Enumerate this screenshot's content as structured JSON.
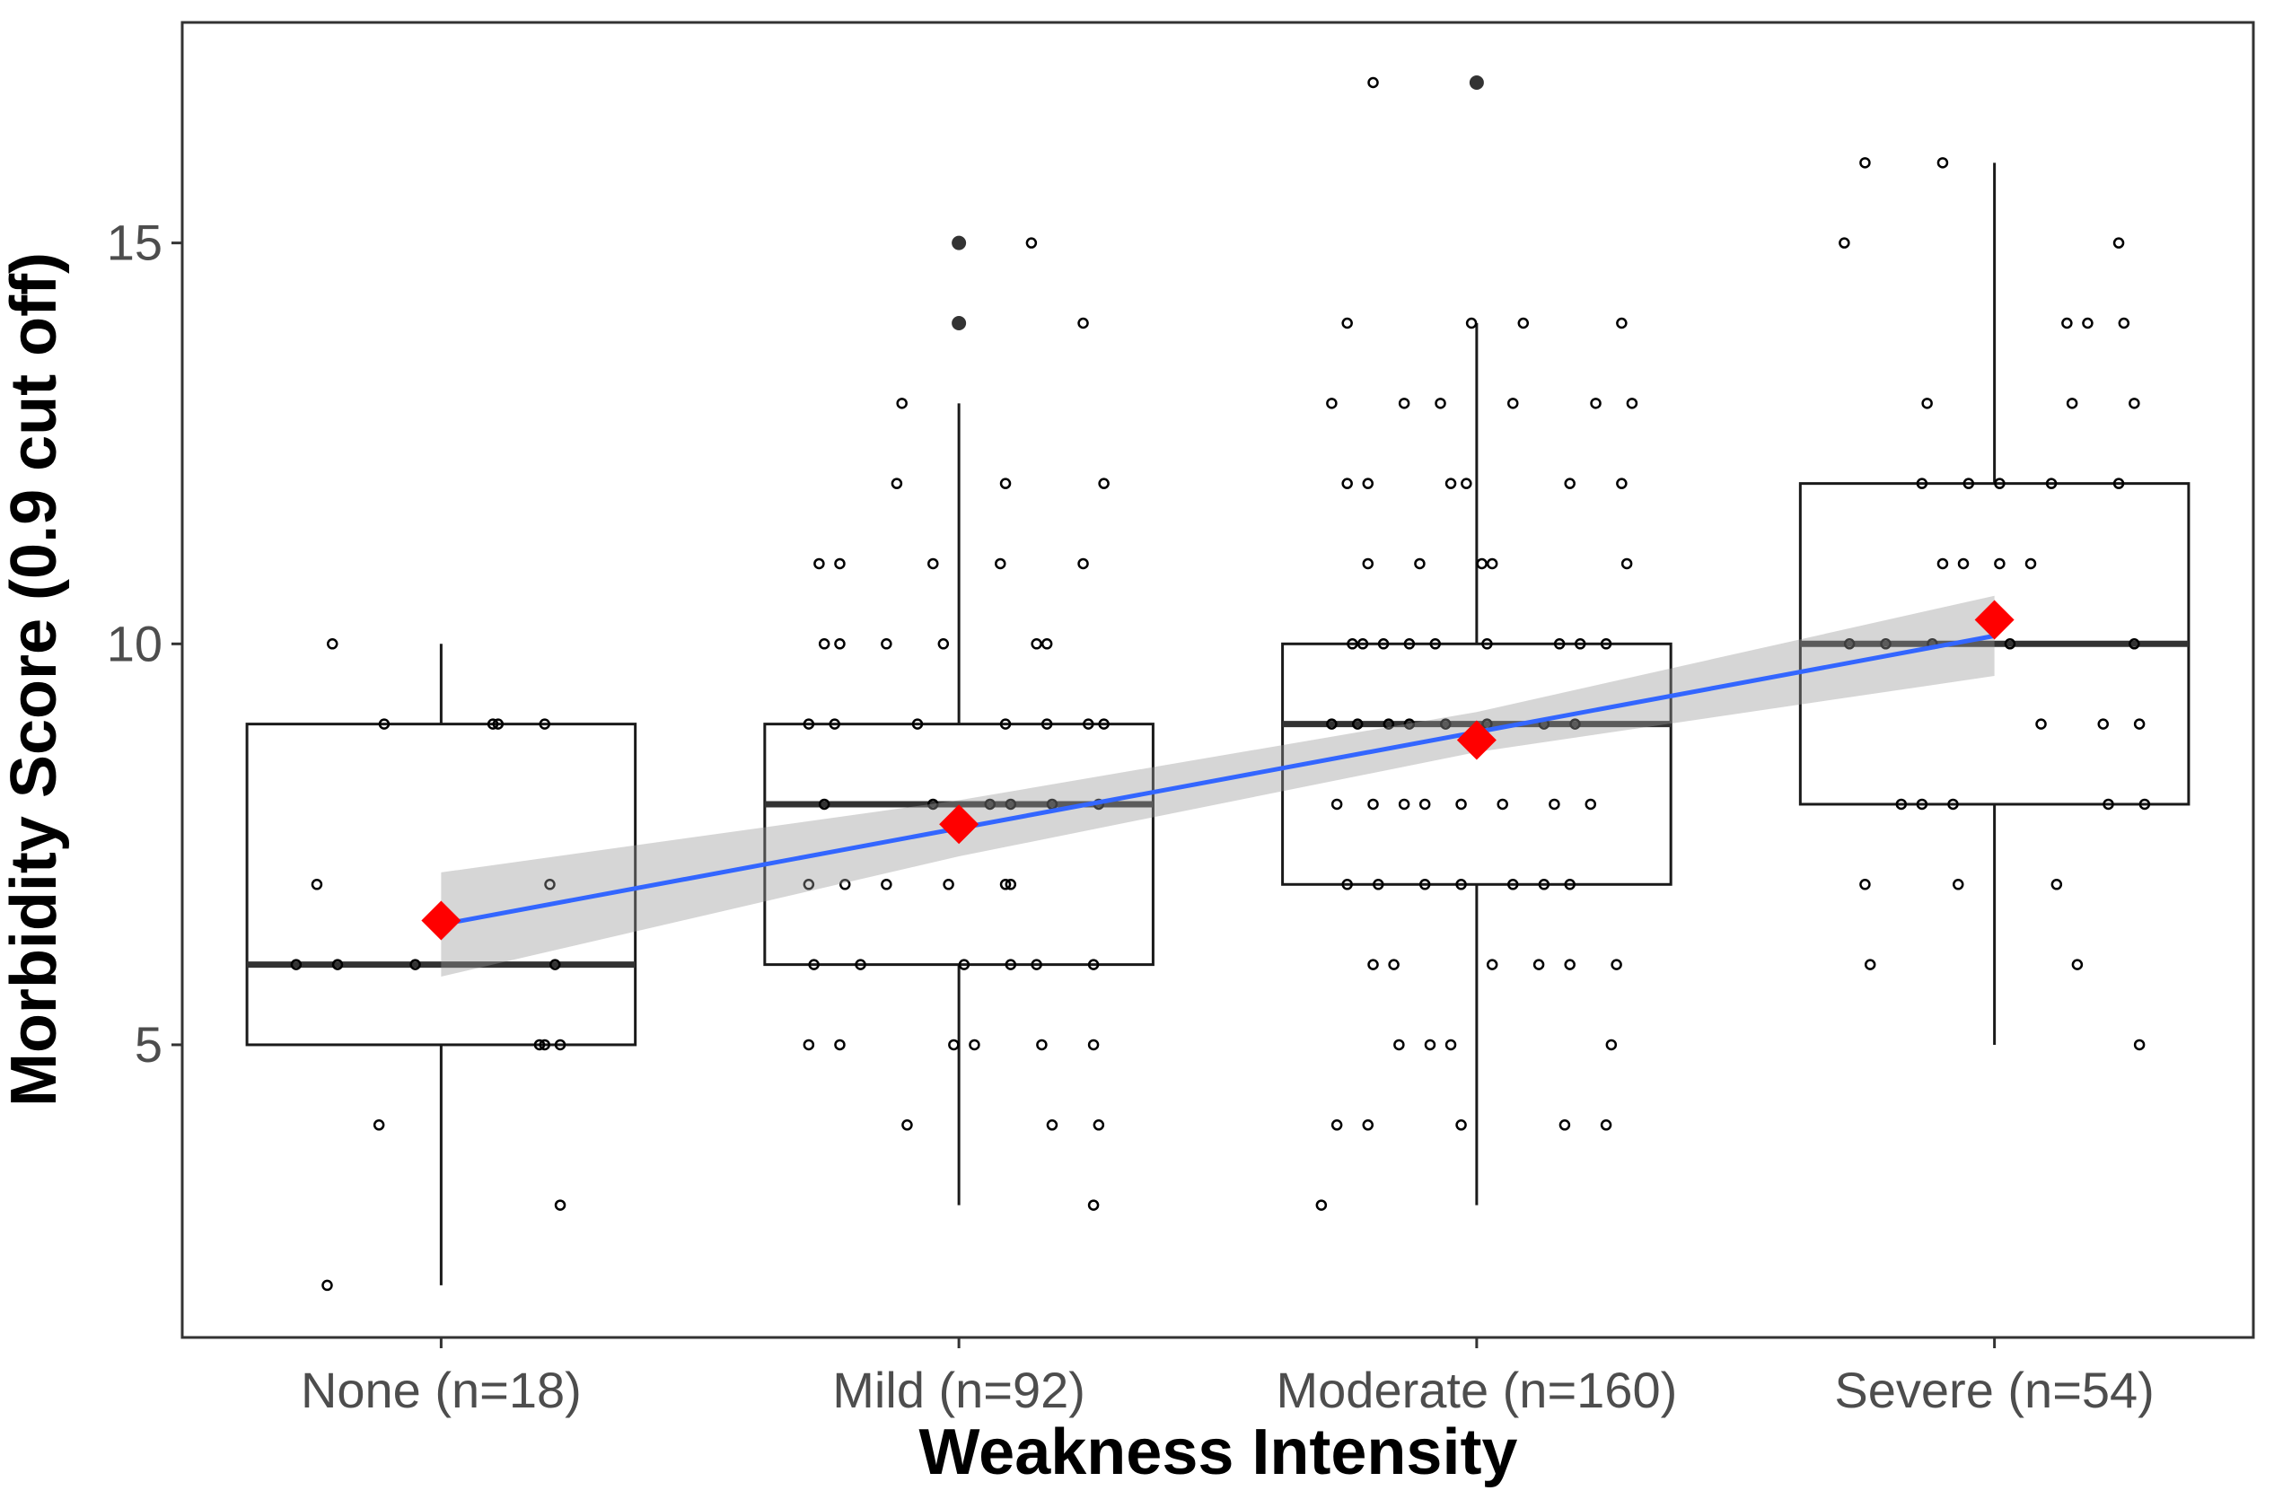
{
  "chart_data": {
    "type": "boxplot",
    "title": "",
    "xlabel": "Weakness Intensity",
    "ylabel": "Morbidity Score (0.9 cut off)",
    "categories": [
      "None (n=18)",
      "Mild (n=92)",
      "Moderate (n=160)",
      "Severe (n=54)"
    ],
    "ylim": [
      1.35,
      17.75
    ],
    "yticks": [
      5,
      10,
      15
    ],
    "grid": false,
    "legend": "none",
    "boxes": [
      {
        "category": "None (n=18)",
        "min": 2,
        "q1": 5,
        "median": 6,
        "q3": 9,
        "max": 10,
        "outliers": []
      },
      {
        "category": "Mild (n=92)",
        "min": 3,
        "q1": 6,
        "median": 8,
        "q3": 9,
        "max": 13,
        "outliers": [
          14,
          15
        ]
      },
      {
        "category": "Moderate (n=160)",
        "min": 3,
        "q1": 7,
        "median": 9,
        "q3": 10,
        "max": 14,
        "outliers": [
          17
        ]
      },
      {
        "category": "Severe (n=54)",
        "min": 5,
        "q1": 8,
        "median": 10,
        "q3": 12,
        "max": 16,
        "outliers": []
      }
    ],
    "means": [
      6.55,
      7.75,
      8.8,
      10.3
    ],
    "trend": {
      "fit": [
        6.5,
        7.7,
        8.9,
        10.1
      ],
      "ci_low": [
        5.85,
        7.35,
        8.65,
        9.6
      ],
      "ci_high": [
        7.15,
        8.05,
        9.15,
        10.6
      ]
    },
    "jitter_points": [
      {
        "group": 0,
        "points": [
          [
            -0.21,
            10
          ],
          [
            -0.11,
            9
          ],
          [
            0.1,
            9
          ],
          [
            0.11,
            9
          ],
          [
            0.2,
            9
          ],
          [
            -0.24,
            7
          ],
          [
            0.21,
            7
          ],
          [
            -0.28,
            6
          ],
          [
            -0.2,
            6
          ],
          [
            -0.05,
            6
          ],
          [
            0.22,
            6
          ],
          [
            0.19,
            5
          ],
          [
            0.2,
            5
          ],
          [
            0.23,
            5
          ],
          [
            -0.12,
            4
          ],
          [
            0.23,
            3
          ],
          [
            -0.22,
            2
          ]
        ]
      },
      {
        "group": 1,
        "points": [
          [
            0.14,
            15
          ],
          [
            0.24,
            14
          ],
          [
            -0.11,
            13
          ],
          [
            -0.12,
            12
          ],
          [
            0.09,
            12
          ],
          [
            0.28,
            12
          ],
          [
            -0.27,
            11
          ],
          [
            -0.23,
            11
          ],
          [
            -0.05,
            11
          ],
          [
            0.08,
            11
          ],
          [
            0.24,
            11
          ],
          [
            -0.26,
            10
          ],
          [
            -0.23,
            10
          ],
          [
            -0.14,
            10
          ],
          [
            -0.03,
            10
          ],
          [
            0.15,
            10
          ],
          [
            0.17,
            10
          ],
          [
            -0.29,
            9
          ],
          [
            -0.24,
            9
          ],
          [
            -0.08,
            9
          ],
          [
            0.09,
            9
          ],
          [
            0.17,
            9
          ],
          [
            0.25,
            9
          ],
          [
            0.28,
            9
          ],
          [
            -0.26,
            8
          ],
          [
            -0.05,
            8
          ],
          [
            0.06,
            8
          ],
          [
            0.1,
            8
          ],
          [
            0.18,
            8
          ],
          [
            0.27,
            8
          ],
          [
            -0.29,
            7
          ],
          [
            -0.22,
            7
          ],
          [
            -0.14,
            7
          ],
          [
            -0.02,
            7
          ],
          [
            0.09,
            7
          ],
          [
            0.1,
            7
          ],
          [
            -0.28,
            6
          ],
          [
            -0.19,
            6
          ],
          [
            0.01,
            6
          ],
          [
            0.1,
            6
          ],
          [
            0.15,
            6
          ],
          [
            0.26,
            6
          ],
          [
            -0.29,
            5
          ],
          [
            -0.23,
            5
          ],
          [
            -0.01,
            5
          ],
          [
            0.03,
            5
          ],
          [
            0.16,
            5
          ],
          [
            0.26,
            5
          ],
          [
            -0.1,
            4
          ],
          [
            0.18,
            4
          ],
          [
            0.27,
            4
          ],
          [
            0.26,
            3
          ]
        ]
      },
      {
        "group": 2,
        "points": [
          [
            -0.2,
            17
          ],
          [
            -0.25,
            14
          ],
          [
            -0.01,
            14
          ],
          [
            0.09,
            14
          ],
          [
            0.28,
            14
          ],
          [
            -0.28,
            13
          ],
          [
            -0.14,
            13
          ],
          [
            -0.07,
            13
          ],
          [
            0.07,
            13
          ],
          [
            0.23,
            13
          ],
          [
            0.3,
            13
          ],
          [
            -0.25,
            12
          ],
          [
            -0.21,
            12
          ],
          [
            -0.05,
            12
          ],
          [
            -0.02,
            12
          ],
          [
            0.18,
            12
          ],
          [
            0.28,
            12
          ],
          [
            -0.21,
            11
          ],
          [
            -0.11,
            11
          ],
          [
            0.01,
            11
          ],
          [
            0.03,
            11
          ],
          [
            0.29,
            11
          ],
          [
            -0.24,
            10
          ],
          [
            -0.22,
            10
          ],
          [
            -0.18,
            10
          ],
          [
            -0.13,
            10
          ],
          [
            -0.08,
            10
          ],
          [
            0.02,
            10
          ],
          [
            0.16,
            10
          ],
          [
            0.2,
            10
          ],
          [
            0.25,
            10
          ],
          [
            -0.28,
            9
          ],
          [
            -0.23,
            9
          ],
          [
            -0.17,
            9
          ],
          [
            -0.13,
            9
          ],
          [
            -0.06,
            9
          ],
          [
            0.02,
            9
          ],
          [
            0.13,
            9
          ],
          [
            0.19,
            9
          ],
          [
            -0.27,
            8
          ],
          [
            -0.2,
            8
          ],
          [
            -0.14,
            8
          ],
          [
            -0.1,
            8
          ],
          [
            -0.03,
            8
          ],
          [
            0.05,
            8
          ],
          [
            0.15,
            8
          ],
          [
            0.22,
            8
          ],
          [
            -0.25,
            7
          ],
          [
            -0.19,
            7
          ],
          [
            -0.1,
            7
          ],
          [
            -0.03,
            7
          ],
          [
            0.07,
            7
          ],
          [
            0.13,
            7
          ],
          [
            0.18,
            7
          ],
          [
            -0.2,
            6
          ],
          [
            -0.16,
            6
          ],
          [
            0.03,
            6
          ],
          [
            0.12,
            6
          ],
          [
            0.18,
            6
          ],
          [
            0.27,
            6
          ],
          [
            -0.15,
            5
          ],
          [
            -0.09,
            5
          ],
          [
            -0.05,
            5
          ],
          [
            0.26,
            5
          ],
          [
            -0.27,
            4
          ],
          [
            -0.21,
            4
          ],
          [
            -0.03,
            4
          ],
          [
            0.17,
            4
          ],
          [
            0.25,
            4
          ],
          [
            -0.3,
            3
          ]
        ]
      },
      {
        "group": 3,
        "points": [
          [
            -0.25,
            16
          ],
          [
            -0.1,
            16
          ],
          [
            -0.29,
            15
          ],
          [
            0.24,
            15
          ],
          [
            0.14,
            14
          ],
          [
            0.18,
            14
          ],
          [
            0.25,
            14
          ],
          [
            -0.13,
            13
          ],
          [
            0.15,
            13
          ],
          [
            0.27,
            13
          ],
          [
            -0.14,
            12
          ],
          [
            -0.05,
            12
          ],
          [
            0.01,
            12
          ],
          [
            0.11,
            12
          ],
          [
            0.24,
            12
          ],
          [
            -0.1,
            11
          ],
          [
            -0.06,
            11
          ],
          [
            0.01,
            11
          ],
          [
            0.07,
            11
          ],
          [
            -0.28,
            10
          ],
          [
            -0.21,
            10
          ],
          [
            -0.12,
            10
          ],
          [
            0.03,
            10
          ],
          [
            0.27,
            10
          ],
          [
            0.09,
            9
          ],
          [
            0.21,
            9
          ],
          [
            0.28,
            9
          ],
          [
            -0.18,
            8
          ],
          [
            -0.14,
            8
          ],
          [
            -0.08,
            8
          ],
          [
            0.22,
            8
          ],
          [
            0.29,
            8
          ],
          [
            -0.25,
            7
          ],
          [
            -0.07,
            7
          ],
          [
            0.12,
            7
          ],
          [
            -0.24,
            6
          ],
          [
            0.16,
            6
          ],
          [
            0.28,
            5
          ]
        ]
      }
    ]
  }
}
